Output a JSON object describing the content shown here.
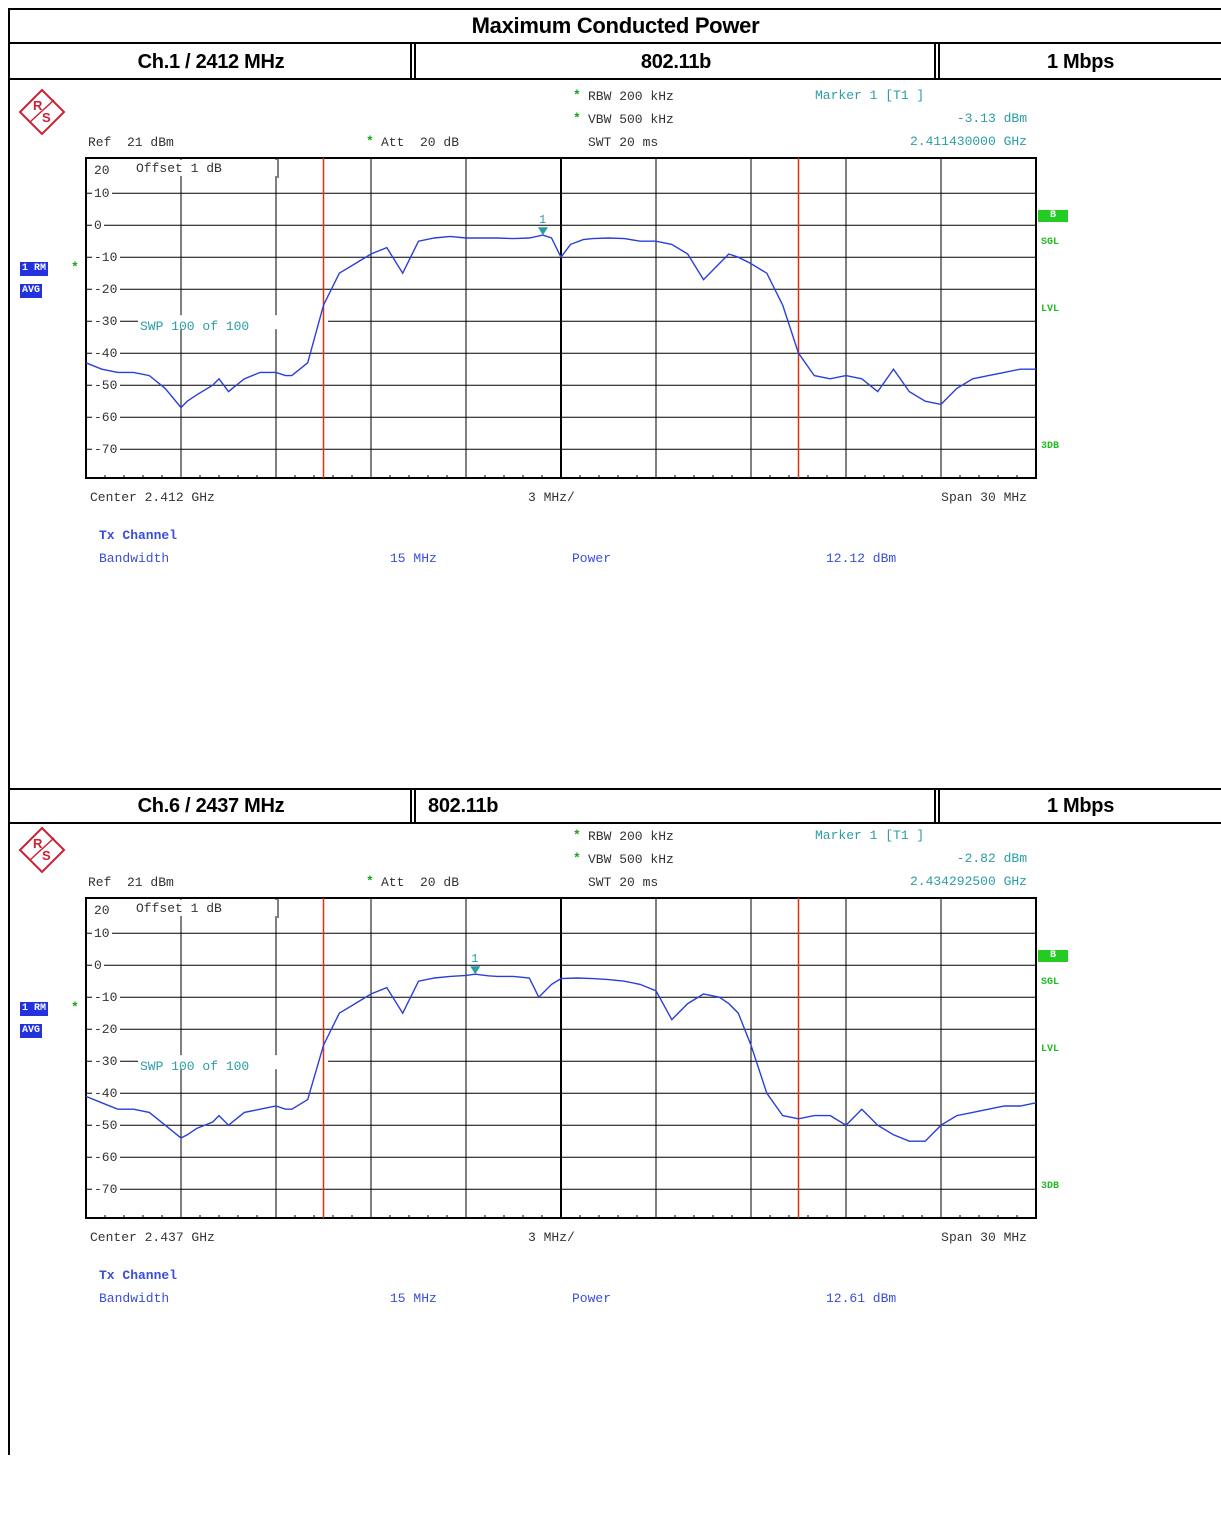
{
  "page": {
    "title": "Maximum Conducted Power"
  },
  "panels": [
    {
      "channel": "Ch.1 / 2412 MHz",
      "mode": "802.11b",
      "rate": "1 Mbps",
      "rbw": "RBW 200 kHz",
      "vbw": "VBW 500 kHz",
      "swt": "SWT 20 ms",
      "marker_label": "Marker 1 [T1 ]",
      "marker_level": "-3.13 dBm",
      "marker_freq": "2.411430000 GHz",
      "ref": "Ref  21 dBm",
      "att": "Att  20 dB",
      "offset": "Offset  1 dB",
      "sweep": "SWP  100 of  100",
      "center": "Center 2.412 GHz",
      "div": "3 MHz/",
      "span": "Span 30 MHz",
      "tx_heading": "Tx Channel",
      "bw_label": "Bandwidth",
      "bw_value": "15 MHz",
      "power_label": "Power",
      "power_value": "12.12 dBm",
      "side_1rm": "1 RM",
      "side_avg": "AVG",
      "side_b": "B",
      "side_sgl": "SGL",
      "side_lvl": "LVL",
      "side_3db": "3DB",
      "marker_number": "1"
    },
    {
      "channel": "Ch.6 / 2437 MHz",
      "mode": "802.11b",
      "rate": "1 Mbps",
      "rbw": "RBW 200 kHz",
      "vbw": "VBW 500 kHz",
      "swt": "SWT 20 ms",
      "marker_label": "Marker 1 [T1 ]",
      "marker_level": "-2.82 dBm",
      "marker_freq": "2.434292500 GHz",
      "ref": "Ref  21 dBm",
      "att": "Att  20 dB",
      "offset": "Offset  1 dB",
      "sweep": "SWP  100 of  100",
      "center": "Center 2.437 GHz",
      "div": "3 MHz/",
      "span": "Span 30 MHz",
      "tx_heading": "Tx Channel",
      "bw_label": "Bandwidth",
      "bw_value": "15 MHz",
      "power_label": "Power",
      "power_value": "12.61 dBm",
      "side_1rm": "1 RM",
      "side_avg": "AVG",
      "side_b": "B",
      "side_sgl": "SGL",
      "side_lvl": "LVL",
      "side_3db": "3DB",
      "marker_number": "1"
    }
  ],
  "colors": {
    "trace": "#2a3fd8",
    "channel_line": "#e03010",
    "marker": "#2b9da3",
    "grid": "#000000"
  },
  "chart_data": [
    {
      "type": "line",
      "x_unit": "MHz",
      "xlim": [
        2397,
        2427
      ],
      "ylim": [
        -79,
        21
      ],
      "y_ticks": [
        20,
        10,
        0,
        -10,
        -20,
        -30,
        -40,
        -50,
        -60,
        -70
      ],
      "channel_bounds": [
        2404.5,
        2419.5
      ],
      "marker": {
        "x": 2411.43,
        "y": -3.13
      },
      "series": [
        {
          "x": [
            2397,
            2397.5,
            2398,
            2398.5,
            2399,
            2399.5,
            2400,
            2400.2,
            2400.5,
            2401,
            2401.2,
            2401.5,
            2402,
            2402.5,
            2403,
            2403.3,
            2403.5,
            2404,
            2404.5,
            2405,
            2405.5,
            2406,
            2406.5,
            2407,
            2407.5,
            2408,
            2408.5,
            2409,
            2409.5,
            2410,
            2410.5,
            2411,
            2411.43,
            2411.7,
            2412,
            2412.3,
            2412.7,
            2413,
            2413.5,
            2414,
            2414.5,
            2415,
            2415.5,
            2416,
            2416.5,
            2417,
            2417.3,
            2417.6,
            2418,
            2418.5,
            2419,
            2419.5,
            2420,
            2420.5,
            2421,
            2421.5,
            2422,
            2422.5,
            2423,
            2423.5,
            2424,
            2424.5,
            2425,
            2425.5,
            2426,
            2426.5,
            2427
          ],
          "y": [
            -43,
            -45,
            -46,
            -46,
            -47,
            -51,
            -57,
            -55,
            -53,
            -50,
            -48,
            -52,
            -48,
            -46,
            -46,
            -47,
            -47,
            -43,
            -25,
            -15,
            -12,
            -9,
            -7,
            -15,
            -5,
            -4,
            -3.5,
            -4,
            -4,
            -4,
            -4.2,
            -4,
            -3.1,
            -4,
            -10,
            -6,
            -4.5,
            -4.2,
            -4,
            -4.2,
            -5,
            -5,
            -6,
            -9,
            -17,
            -12,
            -9,
            -10,
            -12,
            -15,
            -25,
            -40,
            -47,
            -48,
            -47,
            -48,
            -52,
            -45,
            -52,
            -55,
            -56,
            -51,
            -48,
            -47,
            -46,
            -45,
            -45
          ]
        }
      ]
    },
    {
      "type": "line",
      "x_unit": "MHz",
      "xlim": [
        2422,
        2452
      ],
      "ylim": [
        -79,
        21
      ],
      "y_ticks": [
        20,
        10,
        0,
        -10,
        -20,
        -30,
        -40,
        -50,
        -60,
        -70
      ],
      "channel_bounds": [
        2429.5,
        2444.5
      ],
      "marker": {
        "x": 2434.2925,
        "y": -2.82
      },
      "series": [
        {
          "x": [
            2422,
            2422.5,
            2423,
            2423.5,
            2424,
            2424.5,
            2425,
            2425.2,
            2425.5,
            2426,
            2426.2,
            2426.5,
            2427,
            2427.5,
            2428,
            2428.3,
            2428.5,
            2429,
            2429.5,
            2430,
            2430.5,
            2431,
            2431.5,
            2432,
            2432.5,
            2433,
            2433.5,
            2434,
            2434.29,
            2434.7,
            2435,
            2435.5,
            2436,
            2436.3,
            2436.7,
            2437,
            2437.5,
            2438,
            2438.5,
            2439,
            2439.5,
            2440,
            2440.5,
            2441,
            2441.5,
            2442,
            2442.3,
            2442.6,
            2443,
            2443.5,
            2444,
            2444.5,
            2445,
            2445.5,
            2446,
            2446.5,
            2447,
            2447.5,
            2448,
            2448.5,
            2449,
            2449.5,
            2450,
            2450.5,
            2451,
            2451.5,
            2452
          ],
          "y": [
            -41,
            -43,
            -45,
            -45,
            -46,
            -50,
            -54,
            -53,
            -51,
            -49,
            -47,
            -50,
            -46,
            -45,
            -44,
            -45,
            -45,
            -42,
            -25,
            -15,
            -12,
            -9,
            -7,
            -15,
            -5,
            -4,
            -3.5,
            -3.2,
            -2.8,
            -3.3,
            -3.5,
            -3.5,
            -4,
            -10,
            -6,
            -4.2,
            -4,
            -4.2,
            -4.5,
            -5,
            -6,
            -8,
            -17,
            -12,
            -9,
            -10,
            -12,
            -15,
            -25,
            -40,
            -47,
            -48,
            -47,
            -47,
            -50,
            -45,
            -50,
            -53,
            -55,
            -55,
            -50,
            -47,
            -46,
            -45,
            -44,
            -44,
            -43
          ]
        }
      ]
    }
  ]
}
